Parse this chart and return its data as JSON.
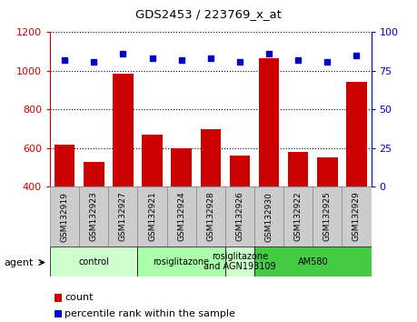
{
  "title": "GDS2453 / 223769_x_at",
  "samples": [
    "GSM132919",
    "GSM132923",
    "GSM132927",
    "GSM132921",
    "GSM132924",
    "GSM132928",
    "GSM132926",
    "GSM132930",
    "GSM132922",
    "GSM132925",
    "GSM132929"
  ],
  "counts": [
    620,
    530,
    985,
    670,
    600,
    700,
    560,
    1065,
    580,
    550,
    945
  ],
  "percentiles": [
    82,
    81,
    86,
    83,
    82,
    83,
    81,
    86,
    82,
    81,
    85
  ],
  "ylim_left": [
    400,
    1200
  ],
  "ylim_right": [
    0,
    100
  ],
  "yticks_left": [
    400,
    600,
    800,
    1000,
    1200
  ],
  "yticks_right": [
    0,
    25,
    50,
    75,
    100
  ],
  "bar_color": "#cc0000",
  "dot_color": "#0000cc",
  "background_color": "#ffffff",
  "groups": [
    {
      "label": "control",
      "start": 0,
      "end": 3,
      "color": "#ccffcc"
    },
    {
      "label": "rosiglitazone",
      "start": 3,
      "end": 6,
      "color": "#aaffaa"
    },
    {
      "label": "rosiglitazone\nand AGN193109",
      "start": 6,
      "end": 7,
      "color": "#ccffcc"
    },
    {
      "label": "AM580",
      "start": 7,
      "end": 11,
      "color": "#44cc44"
    }
  ],
  "legend_count_label": "count",
  "legend_pct_label": "percentile rank within the sample",
  "agent_label": "agent",
  "sample_box_color": "#cccccc",
  "sample_box_edge": "#888888"
}
